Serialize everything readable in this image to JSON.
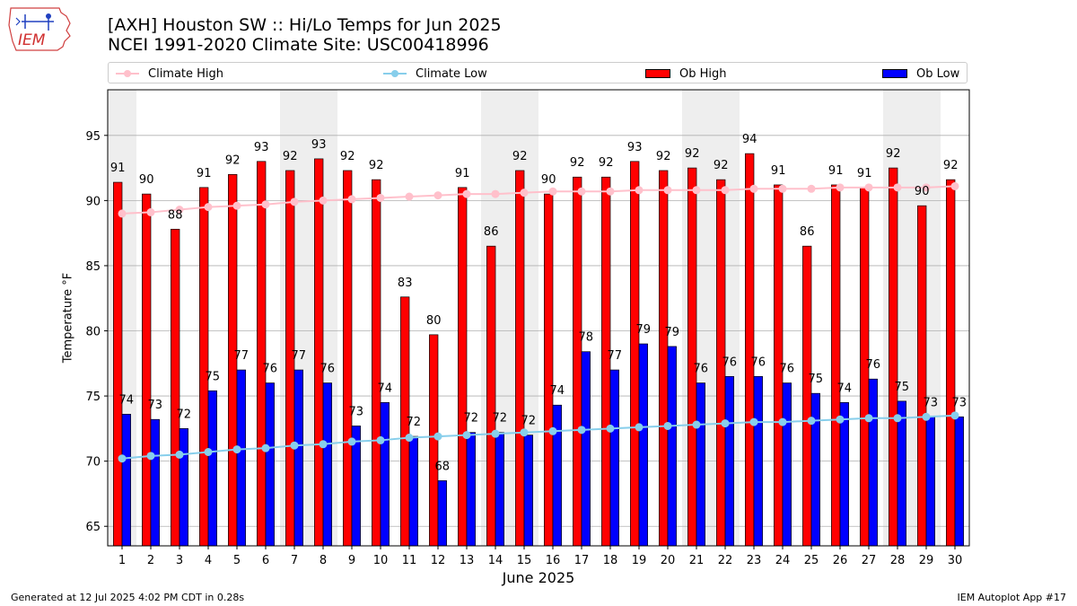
{
  "header": {
    "title_line1": "[AXH] Houston SW :: Hi/Lo Temps for Jun 2025",
    "title_line2": "NCEI 1991-2020 Climate Site: USC00418996",
    "logo_text": "IEM"
  },
  "legend": {
    "climate_high": "Climate High",
    "climate_low": "Climate Low",
    "ob_high": "Ob High",
    "ob_low": "Ob Low"
  },
  "footer": {
    "left": "Generated at 12 Jul 2025 4:02 PM CDT in 0.28s",
    "right": "IEM Autoplot App #17"
  },
  "colors": {
    "ob_high": "#ff0000",
    "ob_low": "#0000ff",
    "climate_high": "#ffc0cb",
    "climate_low": "#87ceeb",
    "weekend_shade": "#eeeeee",
    "grid": "#b0b0b0"
  },
  "chart_data": {
    "type": "bar",
    "xlabel": "June 2025",
    "ylabel": "Temperature °F",
    "ylim": [
      63.5,
      98.5
    ],
    "yticks": [
      65,
      70,
      75,
      80,
      85,
      90,
      95
    ],
    "grid": "horizontal",
    "legend_placement": "top",
    "categories": [
      "1",
      "2",
      "3",
      "4",
      "5",
      "6",
      "7",
      "8",
      "9",
      "10",
      "11",
      "12",
      "13",
      "14",
      "15",
      "16",
      "17",
      "18",
      "19",
      "20",
      "21",
      "22",
      "23",
      "24",
      "25",
      "26",
      "27",
      "28",
      "29",
      "30"
    ],
    "shaded_days": [
      1,
      7,
      8,
      14,
      15,
      21,
      22,
      28,
      29
    ],
    "series": [
      {
        "name": "Ob High",
        "kind": "bar",
        "values": [
          91.4,
          90.5,
          87.8,
          91.0,
          92.0,
          93.0,
          92.3,
          93.2,
          92.3,
          91.6,
          82.6,
          79.7,
          91.0,
          86.5,
          92.3,
          90.5,
          91.8,
          91.8,
          93.0,
          92.3,
          92.5,
          91.6,
          93.6,
          91.2,
          86.5,
          91.2,
          91.0,
          92.5,
          89.6,
          91.6
        ],
        "labels": [
          "91",
          "90",
          "88",
          "91",
          "92",
          "93",
          "92",
          "93",
          "92",
          "92",
          "83",
          "80",
          "91",
          "86",
          "92",
          "90",
          "92",
          "92",
          "93",
          "92",
          "92",
          "92",
          "94",
          "91",
          "86",
          "91",
          "91",
          "92",
          "90",
          "92"
        ]
      },
      {
        "name": "Ob Low",
        "kind": "bar",
        "values": [
          73.6,
          73.2,
          72.5,
          75.4,
          77.0,
          76.0,
          77.0,
          76.0,
          72.7,
          74.5,
          71.9,
          68.5,
          72.2,
          72.2,
          72.0,
          74.3,
          78.4,
          77.0,
          79.0,
          78.8,
          76.0,
          76.5,
          76.5,
          76.0,
          75.2,
          74.5,
          76.3,
          74.6,
          73.4,
          73.4
        ],
        "labels": [
          "74",
          "73",
          "72",
          "75",
          "77",
          "76",
          "77",
          "76",
          "73",
          "74",
          "72",
          "68",
          "72",
          "72",
          "72",
          "74",
          "78",
          "77",
          "79",
          "79",
          "76",
          "76",
          "76",
          "76",
          "75",
          "74",
          "76",
          "75",
          "73",
          "73"
        ]
      },
      {
        "name": "Climate High",
        "kind": "line",
        "values": [
          89.0,
          89.1,
          89.3,
          89.5,
          89.6,
          89.7,
          89.9,
          90.0,
          90.1,
          90.2,
          90.3,
          90.4,
          90.5,
          90.5,
          90.6,
          90.7,
          90.7,
          90.7,
          90.8,
          90.8,
          90.8,
          90.8,
          90.9,
          90.9,
          90.9,
          91.0,
          91.0,
          91.0,
          91.0,
          91.1
        ]
      },
      {
        "name": "Climate Low",
        "kind": "line",
        "values": [
          70.2,
          70.4,
          70.5,
          70.7,
          70.9,
          71.0,
          71.2,
          71.3,
          71.5,
          71.6,
          71.8,
          71.9,
          72.0,
          72.1,
          72.2,
          72.3,
          72.4,
          72.5,
          72.6,
          72.7,
          72.8,
          72.9,
          73.0,
          73.0,
          73.1,
          73.2,
          73.3,
          73.3,
          73.4,
          73.5
        ]
      }
    ]
  }
}
